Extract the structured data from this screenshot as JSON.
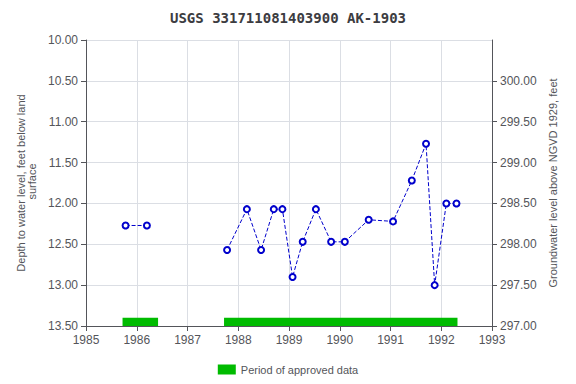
{
  "chart_data": {
    "type": "line",
    "title": "USGS 331711081403900 AK-1903",
    "y_label": "Depth to water level, feet below land\n surface",
    "y2_label": "Groundwater level above NGVD 1929, feet",
    "series": [
      {
        "x": [
          1985.78,
          1986.2
        ],
        "values": [
          12.27,
          12.27
        ],
        "color": "#0000cc",
        "marker": "open circle",
        "line_style": "dashed"
      },
      {
        "x": [
          1987.78,
          1988.17,
          1988.45,
          1988.7,
          1988.87,
          1989.07,
          1989.27,
          1989.53,
          1989.83,
          1990.1,
          1990.57,
          1991.05,
          1991.42,
          1991.7,
          1991.87,
          1992.1,
          1992.3
        ],
        "values": [
          12.57,
          12.07,
          12.57,
          12.07,
          12.07,
          12.9,
          12.47,
          12.07,
          12.47,
          12.47,
          12.2,
          12.22,
          11.72,
          11.27,
          13.0,
          12.0,
          12.0
        ],
        "color": "#0000cc",
        "marker": "open circle",
        "line_style": "dashed"
      }
    ],
    "xlim": [
      1985,
      1993
    ],
    "xticks": [
      1985,
      1986,
      1987,
      1988,
      1989,
      1990,
      1991,
      1992,
      1993
    ],
    "ylim": [
      13.5,
      10.0
    ],
    "yticks": [
      {
        "value": 10.0,
        "label": "10.00"
      },
      {
        "value": 10.5,
        "label": "10.50"
      },
      {
        "value": 11.0,
        "label": "11.00"
      },
      {
        "value": 11.5,
        "label": "11.50"
      },
      {
        "value": 12.0,
        "label": "12.00"
      },
      {
        "value": 12.5,
        "label": "12.50"
      },
      {
        "value": 13.0,
        "label": "13.00"
      },
      {
        "value": 13.5,
        "label": "13.50"
      }
    ],
    "y2lim": [
      297.0,
      300.5
    ],
    "y2ticks": [
      {
        "value": 297.0,
        "label": "297.00"
      },
      {
        "value": 297.5,
        "label": "297.50"
      },
      {
        "value": 298.0,
        "label": "298.00"
      },
      {
        "value": 298.5,
        "label": "298.50"
      },
      {
        "value": 299.0,
        "label": "299.00"
      },
      {
        "value": 299.5,
        "label": "299.50"
      },
      {
        "value": 300.0,
        "label": "300.00"
      }
    ],
    "grid": true,
    "legend": "bottom",
    "approved": {
      "label": "Period of approved data",
      "color": "#00bb00",
      "periods": [
        [
          1985.72,
          1986.42
        ],
        [
          1987.72,
          1992.32
        ]
      ],
      "depth": [
        13.4,
        13.5
      ]
    }
  }
}
